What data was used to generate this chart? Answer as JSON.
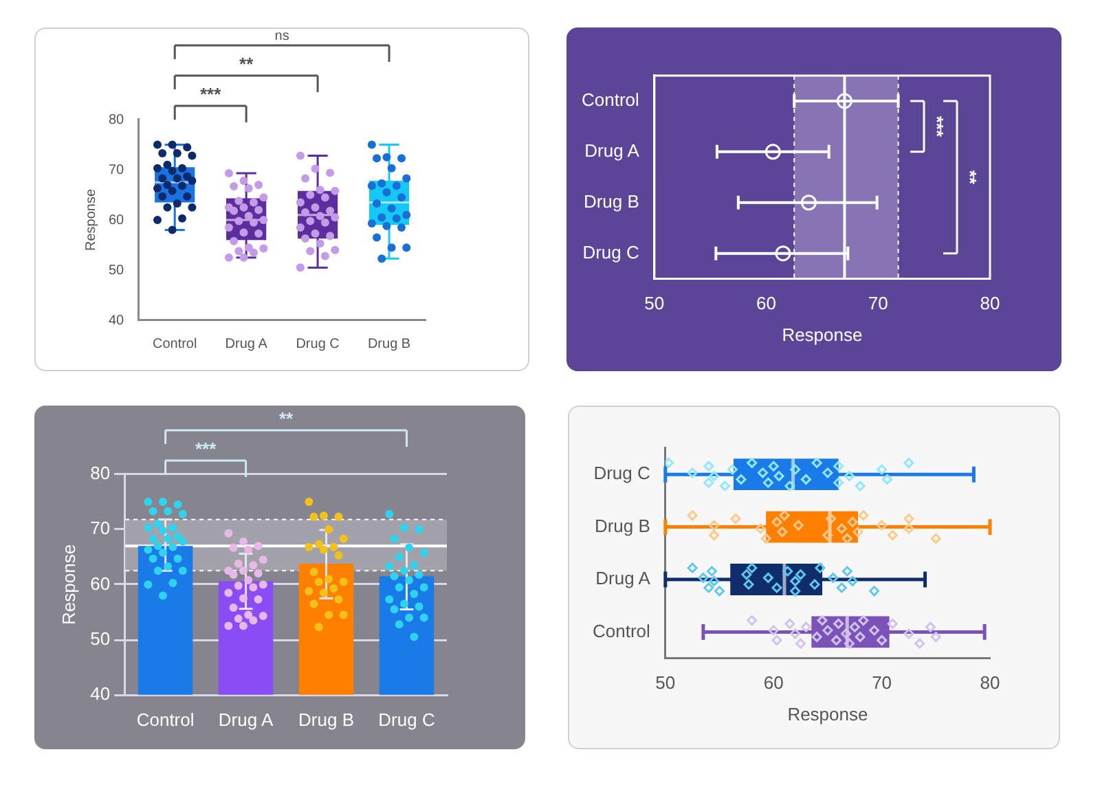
{
  "chart_data": [
    {
      "type": "box",
      "ylabel": "Response",
      "categories": [
        "Control",
        "Drug A",
        "Drug C",
        "Drug B"
      ],
      "colors": [
        "#1a73e0",
        "#5b2d9e",
        "#5b2d9e",
        "#16c8f5"
      ],
      "boxes": [
        {
          "low": 58,
          "q1": 63.5,
          "median": 67.5,
          "q3": 70.5,
          "high": 75
        },
        {
          "low": 52.5,
          "q1": 56,
          "median": 60,
          "q3": 64.3,
          "high": 69.3
        },
        {
          "low": 50.5,
          "q1": 56.3,
          "median": 61,
          "q3": 65.8,
          "high": 72.8
        },
        {
          "low": 52.3,
          "q1": 59,
          "median": 63.5,
          "q3": 67.8,
          "high": 75
        }
      ],
      "series": [
        {
          "type": "scatter",
          "color": "#0d2a6b",
          "x": [
            "Control",
            "Control",
            "Control",
            "Control",
            "Control",
            "Control",
            "Control",
            "Control",
            "Control",
            "Control",
            "Control",
            "Control",
            "Control",
            "Control",
            "Control",
            "Control",
            "Control",
            "Control",
            "Control",
            "Control",
            "Control",
            "Control",
            "Control",
            "Control",
            "Control",
            "Control"
          ],
          "values": [
            75,
            75,
            74.5,
            73.3,
            73.3,
            72.8,
            71,
            70.3,
            70.3,
            69.8,
            68.7,
            68.3,
            68.3,
            67.8,
            67,
            66.8,
            66.3,
            65.8,
            64.7,
            64.7,
            63.3,
            62.5,
            62.5,
            60.3,
            60,
            58
          ]
        },
        {
          "type": "scatter",
          "color": "#c39be6",
          "x": [
            "Drug A",
            "Drug A",
            "Drug A",
            "Drug A",
            "Drug A",
            "Drug A",
            "Drug A",
            "Drug A",
            "Drug A",
            "Drug A",
            "Drug A",
            "Drug A",
            "Drug A",
            "Drug A",
            "Drug A",
            "Drug A",
            "Drug A",
            "Drug A",
            "Drug A",
            "Drug A",
            "Drug A",
            "Drug A",
            "Drug A",
            "Drug A",
            "Drug A",
            "Drug A"
          ],
          "values": [
            69.3,
            67.8,
            67,
            66.7,
            66.3,
            64.5,
            63.8,
            63.5,
            62.5,
            62.5,
            62,
            61.8,
            60.8,
            60,
            59.8,
            59.5,
            58.5,
            57.5,
            57.3,
            55.8,
            54.5,
            54.3,
            53.8,
            53.5,
            52.5,
            52.5
          ]
        },
        {
          "type": "scatter",
          "color": "#c39be6",
          "x": [
            "Drug C",
            "Drug C",
            "Drug C",
            "Drug C",
            "Drug C",
            "Drug C",
            "Drug C",
            "Drug C",
            "Drug C",
            "Drug C",
            "Drug C",
            "Drug C",
            "Drug C",
            "Drug C",
            "Drug C",
            "Drug C",
            "Drug C",
            "Drug C",
            "Drug C",
            "Drug C",
            "Drug C",
            "Drug C",
            "Drug C",
            "Drug C",
            "Drug C"
          ],
          "values": [
            72.8,
            70.2,
            69.4,
            68.3,
            66,
            65.8,
            65,
            64.5,
            63.5,
            62.5,
            61.8,
            61.5,
            60.8,
            60.5,
            59.8,
            59.5,
            58.5,
            57.3,
            56.8,
            56.3,
            55.3,
            54,
            53.8,
            52.8,
            50.5
          ]
        },
        {
          "type": "scatter",
          "color": "#1a6fd6",
          "x": [
            "Drug B",
            "Drug B",
            "Drug B",
            "Drug B",
            "Drug B",
            "Drug B",
            "Drug B",
            "Drug B",
            "Drug B",
            "Drug B",
            "Drug B",
            "Drug B",
            "Drug B",
            "Drug B",
            "Drug B",
            "Drug B",
            "Drug B",
            "Drug B",
            "Drug B",
            "Drug B",
            "Drug B",
            "Drug B",
            "Drug B"
          ],
          "values": [
            75,
            72.5,
            72.3,
            72.3,
            70.3,
            68.3,
            67.3,
            66.8,
            66.8,
            65.5,
            64.5,
            63.3,
            62.3,
            61,
            60.5,
            60.3,
            59.3,
            58.8,
            58.5,
            56.5,
            54.5,
            54.5,
            52.3
          ]
        }
      ],
      "ylim": [
        40,
        80
      ],
      "yticks": [
        40,
        50,
        60,
        70,
        80
      ],
      "marker": "circle",
      "annotations": [
        "***",
        "**",
        "ns"
      ]
    },
    {
      "type": "scatter",
      "orientation": "horizontal",
      "categories": [
        "Control",
        "Drug A",
        "Drug B",
        "Drug C"
      ],
      "values": [
        67,
        60.6,
        63.8,
        61.5
      ],
      "color": "#ffffff",
      "errors": [
        [
          62.5,
          71.8
        ],
        [
          55.6,
          65.6
        ],
        [
          57.5,
          69.9
        ],
        [
          55.5,
          67.3
        ]
      ],
      "xlabel": "Response",
      "xlim": [
        50,
        80
      ],
      "xticks": [
        50,
        60,
        70,
        80
      ],
      "marker": "circle",
      "ref_lines": [
        {
          "axis": "x",
          "value": 67,
          "color": "#ffffff"
        },
        {
          "axis": "x",
          "value": 62.5,
          "color": "#ffffff",
          "line_style": "dashed"
        },
        {
          "axis": "x",
          "value": 71.8,
          "color": "#ffffff",
          "line_style": "dashed"
        }
      ],
      "bands": [
        {
          "axis": "x",
          "from": 62.5,
          "to": 71.8,
          "color": "#8774b5"
        }
      ],
      "annotations": [
        "***",
        "**"
      ]
    },
    {
      "type": "bar",
      "ylabel": "Response",
      "categories": [
        "Control",
        "Drug A",
        "Drug B",
        "Drug C"
      ],
      "series": [
        {
          "type": "bar",
          "colors": [
            "#1a7ae8",
            "#8a4cf5",
            "#ff7f00",
            "#1a7ae8"
          ],
          "values": [
            67,
            60.6,
            63.8,
            61.5
          ],
          "errors": [
            [
              62.5,
              71.8
            ],
            [
              55.6,
              65.6
            ],
            [
              57.5,
              69.9
            ],
            [
              55.5,
              67.3
            ]
          ]
        },
        {
          "type": "scatter",
          "color": "#2ed3f0",
          "x": [
            "Control",
            "Control",
            "Control",
            "Control",
            "Control",
            "Control",
            "Control",
            "Control",
            "Control",
            "Control",
            "Control",
            "Control",
            "Control",
            "Control",
            "Control",
            "Control",
            "Control",
            "Control",
            "Control",
            "Control",
            "Control",
            "Control",
            "Control",
            "Control",
            "Control",
            "Control"
          ],
          "values": [
            75,
            75,
            74.5,
            73.3,
            73.3,
            72.8,
            71,
            70.3,
            70.3,
            69.8,
            68.7,
            68.3,
            68.3,
            67.8,
            67,
            66.8,
            66.3,
            65.8,
            64.7,
            64.7,
            63.3,
            62.5,
            62.5,
            60.3,
            60,
            58
          ]
        },
        {
          "type": "scatter",
          "color": "#e8b8ea",
          "x": [
            "Drug A",
            "Drug A",
            "Drug A",
            "Drug A",
            "Drug A",
            "Drug A",
            "Drug A",
            "Drug A",
            "Drug A",
            "Drug A",
            "Drug A",
            "Drug A",
            "Drug A",
            "Drug A",
            "Drug A",
            "Drug A",
            "Drug A",
            "Drug A",
            "Drug A",
            "Drug A",
            "Drug A",
            "Drug A",
            "Drug A",
            "Drug A",
            "Drug A",
            "Drug A"
          ],
          "values": [
            69.3,
            67.8,
            67,
            66.7,
            66.3,
            64.5,
            63.8,
            63.5,
            62.5,
            62.5,
            62,
            61.8,
            60.8,
            60,
            59.8,
            59.5,
            58.5,
            57.5,
            57.3,
            55.8,
            54.5,
            54.3,
            53.8,
            53.5,
            52.5,
            52.5
          ]
        },
        {
          "type": "scatter",
          "color": "#f2c21b",
          "x": [
            "Drug B",
            "Drug B",
            "Drug B",
            "Drug B",
            "Drug B",
            "Drug B",
            "Drug B",
            "Drug B",
            "Drug B",
            "Drug B",
            "Drug B",
            "Drug B",
            "Drug B",
            "Drug B",
            "Drug B",
            "Drug B",
            "Drug B",
            "Drug B",
            "Drug B",
            "Drug B",
            "Drug B",
            "Drug B",
            "Drug B"
          ],
          "values": [
            75,
            72.5,
            72.3,
            72.3,
            70,
            68.3,
            67.3,
            66.8,
            66.8,
            66.3,
            65.3,
            62.3,
            61,
            60.5,
            60.5,
            59.3,
            58.8,
            58.5,
            57.3,
            56.5,
            54.5,
            54.5,
            52.3
          ]
        },
        {
          "type": "scatter",
          "color": "#2ed3f0",
          "x": [
            "Drug C",
            "Drug C",
            "Drug C",
            "Drug C",
            "Drug C",
            "Drug C",
            "Drug C",
            "Drug C",
            "Drug C",
            "Drug C",
            "Drug C",
            "Drug C",
            "Drug C",
            "Drug C",
            "Drug C",
            "Drug C",
            "Drug C",
            "Drug C",
            "Drug C",
            "Drug C",
            "Drug C",
            "Drug C",
            "Drug C",
            "Drug C"
          ],
          "values": [
            72.8,
            70.3,
            70,
            68.3,
            66.7,
            65.8,
            65,
            63.5,
            63.3,
            62.5,
            61.8,
            61.5,
            60.8,
            59.5,
            59.5,
            58.3,
            57.3,
            56.5,
            56,
            55.5,
            54,
            54,
            52.8,
            50.5
          ]
        }
      ],
      "ylim": [
        40,
        80
      ],
      "yticks": [
        40,
        50,
        60,
        70,
        80
      ],
      "grid": "y",
      "marker": "circle",
      "ref_lines": [
        {
          "axis": "y",
          "value": 67,
          "color": "#ffffff"
        },
        {
          "axis": "y",
          "value": 62.5,
          "color": "#ffffff",
          "line_style": "dashed"
        },
        {
          "axis": "y",
          "value": 71.8,
          "color": "#ffffff",
          "line_style": "dashed"
        }
      ],
      "bands": [
        {
          "axis": "y",
          "from": 62.5,
          "to": 71.8,
          "color": "#a3a2aa"
        }
      ],
      "annotations": [
        "***",
        "**"
      ]
    },
    {
      "type": "box",
      "orientation": "horizontal",
      "xlabel": "Response",
      "categories": [
        "Drug C",
        "Drug B",
        "Drug A",
        "Control"
      ],
      "colors": [
        "#1a7ae8",
        "#ff7f00",
        "#0f2d6b",
        "#7b52b8"
      ],
      "boxes": [
        {
          "low": 50,
          "q1": 56.3,
          "median": 61.8,
          "q3": 66,
          "high": 78.5
        },
        {
          "low": 50,
          "q1": 59.3,
          "median": 65.2,
          "q3": 67.8,
          "high": 80
        },
        {
          "low": 50,
          "q1": 56,
          "median": 61,
          "q3": 64.5,
          "high": 74
        },
        {
          "low": 53.5,
          "q1": 63.5,
          "median": 66.8,
          "q3": 70.7,
          "high": 79.5
        }
      ],
      "series": [
        {
          "type": "scatter",
          "color": "#8fe8ff",
          "x": [
            "Drug C",
            "Drug C",
            "Drug C",
            "Drug C",
            "Drug C",
            "Drug C",
            "Drug C",
            "Drug C",
            "Drug C",
            "Drug C",
            "Drug C",
            "Drug C",
            "Drug C",
            "Drug C",
            "Drug C",
            "Drug C",
            "Drug C",
            "Drug C",
            "Drug C",
            "Drug C",
            "Drug C",
            "Drug C",
            "Drug C",
            "Drug C",
            "Drug C"
          ],
          "values": [
            50.3,
            52.5,
            54,
            54,
            54.5,
            55.5,
            56.2,
            57,
            58,
            59,
            59.5,
            60,
            60.5,
            61.5,
            62,
            63,
            64,
            65,
            66,
            66,
            67,
            68,
            70,
            70.5,
            72.5
          ]
        },
        {
          "type": "scatter",
          "color": "#ffc98a",
          "x": [
            "Drug B",
            "Drug B",
            "Drug B",
            "Drug B",
            "Drug B",
            "Drug B",
            "Drug B",
            "Drug B",
            "Drug B",
            "Drug B",
            "Drug B",
            "Drug B",
            "Drug B",
            "Drug B",
            "Drug B",
            "Drug B",
            "Drug B",
            "Drug B",
            "Drug B",
            "Drug B",
            "Drug B",
            "Drug B"
          ],
          "values": [
            52.5,
            54.5,
            54.5,
            56.5,
            58.8,
            59.3,
            60.3,
            60.8,
            61,
            62.3,
            65,
            65.3,
            66.3,
            66.8,
            67.3,
            67.8,
            68.3,
            70,
            71,
            72.5,
            72.5,
            75
          ]
        },
        {
          "type": "scatter",
          "color": "#5fc8f0",
          "x": [
            "Drug A",
            "Drug A",
            "Drug A",
            "Drug A",
            "Drug A",
            "Drug A",
            "Drug A",
            "Drug A",
            "Drug A",
            "Drug A",
            "Drug A",
            "Drug A",
            "Drug A",
            "Drug A",
            "Drug A",
            "Drug A",
            "Drug A",
            "Drug A",
            "Drug A",
            "Drug A",
            "Drug A",
            "Drug A"
          ],
          "values": [
            52.5,
            53.5,
            54,
            54.3,
            54.5,
            55,
            57.5,
            57.7,
            58,
            59.5,
            60.3,
            61.3,
            62,
            62,
            62.5,
            63.8,
            64.3,
            65.5,
            66.3,
            66.8,
            67.3,
            69.3
          ]
        },
        {
          "type": "scatter",
          "color": "#d2c2f2",
          "x": [
            "Control",
            "Control",
            "Control",
            "Control",
            "Control",
            "Control",
            "Control",
            "Control",
            "Control",
            "Control",
            "Control",
            "Control",
            "Control",
            "Control",
            "Control",
            "Control",
            "Control",
            "Control",
            "Control",
            "Control",
            "Control",
            "Control",
            "Control",
            "Control"
          ],
          "values": [
            58,
            60,
            60.3,
            61.5,
            62,
            62.5,
            63,
            64,
            64.5,
            65,
            65.8,
            66,
            66.7,
            67,
            67.5,
            68,
            68.3,
            69.3,
            70,
            71,
            72.5,
            73.5,
            74.5,
            75
          ]
        }
      ],
      "xlim": [
        50,
        80
      ],
      "xticks": [
        50,
        60,
        70,
        80
      ],
      "marker": "diamond"
    }
  ]
}
